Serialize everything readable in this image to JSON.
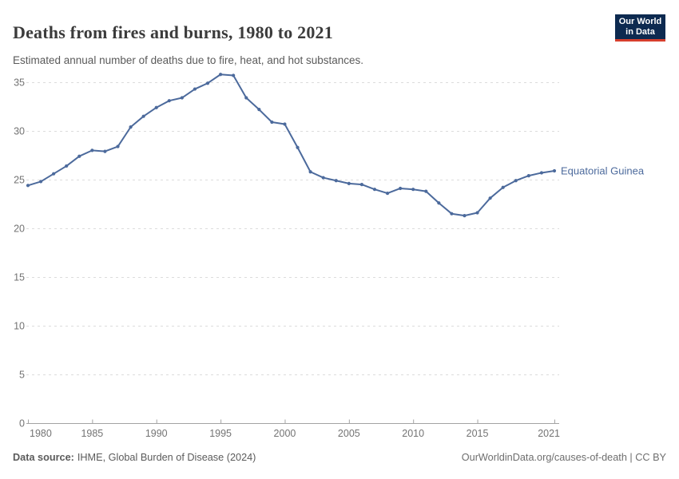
{
  "header": {
    "title": "Deaths from fires and burns, 1980 to 2021",
    "subtitle": "Estimated annual number of deaths due to fire, heat, and hot substances.",
    "logo": {
      "line1": "Our World",
      "line2": "in Data",
      "bg_color": "#0d2a50",
      "accent_color": "#d63f2d",
      "text_color": "#ffffff"
    }
  },
  "chart_data": {
    "type": "line",
    "title": "Deaths from fires and burns, 1980 to 2021",
    "xlabel": "",
    "ylabel": "",
    "xlim": [
      1980,
      2021
    ],
    "ylim": [
      0,
      35
    ],
    "grid": "horizontal-dashed",
    "legend_position": "end-of-line-label",
    "x_ticks": [
      1980,
      1985,
      1990,
      1995,
      2000,
      2005,
      2010,
      2015,
      2021
    ],
    "y_ticks": [
      0,
      5,
      10,
      15,
      20,
      25,
      30,
      35
    ],
    "x": [
      1980,
      1981,
      1982,
      1983,
      1984,
      1985,
      1986,
      1987,
      1988,
      1989,
      1990,
      1991,
      1992,
      1993,
      1994,
      1995,
      1996,
      1997,
      1998,
      1999,
      2000,
      2001,
      2002,
      2003,
      2004,
      2005,
      2006,
      2007,
      2008,
      2009,
      2010,
      2011,
      2012,
      2013,
      2014,
      2015,
      2016,
      2017,
      2018,
      2019,
      2020,
      2021
    ],
    "series": [
      {
        "name": "Equatorial Guinea",
        "color": "#4c6a9c",
        "values": [
          24.4,
          24.8,
          25.6,
          26.4,
          27.4,
          28.0,
          27.9,
          28.4,
          30.4,
          31.5,
          32.4,
          33.1,
          33.4,
          34.3,
          34.9,
          35.8,
          35.7,
          33.4,
          32.2,
          30.9,
          30.7,
          28.3,
          25.8,
          25.2,
          24.9,
          24.6,
          24.5,
          24.0,
          23.6,
          24.1,
          24.0,
          23.8,
          22.6,
          21.5,
          21.3,
          21.6,
          23.1,
          24.2,
          24.9,
          25.4,
          25.7,
          25.9
        ]
      }
    ],
    "style": {
      "axis_color": "#a3a3a3",
      "grid_color": "#dcdcdc",
      "tick_label_color": "#737373"
    }
  },
  "footer": {
    "source_label": "Data source:",
    "source_value": "IHME, Global Burden of Disease (2024)",
    "citation": "OurWorldinData.org/causes-of-death | CC BY"
  }
}
